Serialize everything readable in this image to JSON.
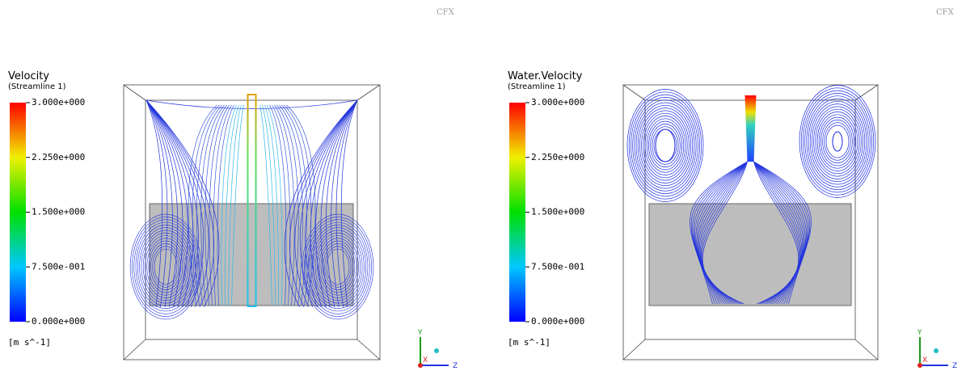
{
  "panels": [
    {
      "title": "Velocity",
      "subtitle": "(Streamline 1)",
      "ticks": [
        "3.000e+000",
        "2.250e+000",
        "1.500e+000",
        "7.500e-001",
        "0.000e+000"
      ],
      "units": "[m s^-1]",
      "logo": "CFX",
      "axes": [
        "Y",
        "Z",
        "X"
      ]
    },
    {
      "title": "Water.Velocity",
      "subtitle": "(Streamline 1)",
      "ticks": [
        "3.000e+000",
        "2.250e+000",
        "1.500e+000",
        "7.500e-001",
        "0.000e+000"
      ],
      "units": "[m s^-1]",
      "logo": "CFX",
      "axes": [
        "Y",
        "Z",
        "X"
      ]
    }
  ]
}
